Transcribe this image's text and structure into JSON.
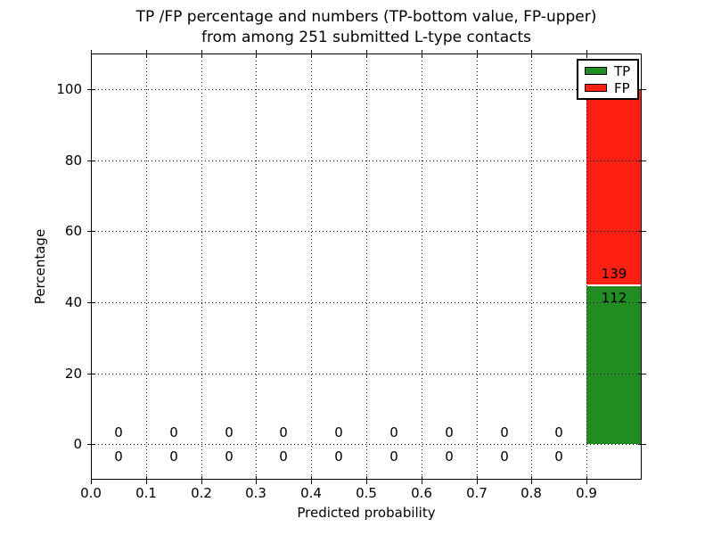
{
  "chart_data": {
    "type": "bar",
    "stacked": true,
    "title_lines": [
      "TP /FP percentage and numbers (TP-bottom value, FP-upper)",
      "from among 251 submitted L-type contacts"
    ],
    "xlabel": "Predicted probability",
    "ylabel": "Percentage",
    "xlim": [
      0.0,
      1.0
    ],
    "ylim": [
      -10,
      110
    ],
    "x_ticks": [
      "0.0",
      "0.1",
      "0.2",
      "0.3",
      "0.4",
      "0.5",
      "0.6",
      "0.7",
      "0.8",
      "0.9"
    ],
    "y_ticks": [
      "0",
      "20",
      "40",
      "60",
      "80",
      "100"
    ],
    "grid": true,
    "grid_style": "dotted, drawn above bars",
    "bin_width": 0.1,
    "bin_starts": [
      0.0,
      0.1,
      0.2,
      0.3,
      0.4,
      0.5,
      0.6,
      0.7,
      0.8,
      0.9
    ],
    "total_contacts": 251,
    "series": [
      {
        "name": "TP",
        "color": "#218c21",
        "counts": [
          0,
          0,
          0,
          0,
          0,
          0,
          0,
          0,
          0,
          112
        ],
        "percent_last_bin": 44.62
      },
      {
        "name": "FP",
        "color": "#ff2014",
        "counts": [
          0,
          0,
          0,
          0,
          0,
          0,
          0,
          0,
          0,
          139
        ],
        "percent_last_bin": 55.38
      }
    ],
    "legend": {
      "position": "upper right",
      "entries": [
        {
          "label": "TP",
          "color": "#218c21"
        },
        {
          "label": "FP",
          "color": "#ff2014"
        }
      ]
    }
  }
}
